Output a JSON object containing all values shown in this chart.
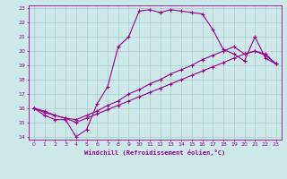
{
  "xlabel": "Windchill (Refroidissement éolien,°C)",
  "bg_color": "#cce8e8",
  "line_color": "#990099",
  "grid_color": "#aacccc",
  "xlim": [
    -0.5,
    23.5
  ],
  "ylim": [
    13.8,
    23.2
  ],
  "x_ticks": [
    0,
    1,
    2,
    3,
    4,
    5,
    6,
    7,
    8,
    9,
    10,
    11,
    12,
    13,
    14,
    15,
    16,
    17,
    18,
    19,
    20,
    21,
    22,
    23
  ],
  "y_ticks": [
    14,
    15,
    16,
    17,
    18,
    19,
    20,
    21,
    22,
    23
  ],
  "line1_x": [
    0,
    1,
    2,
    3,
    4,
    5,
    6,
    7,
    8,
    9,
    10,
    11,
    12,
    13,
    14,
    15,
    16,
    17,
    18,
    19,
    20,
    21,
    22,
    23
  ],
  "line1_y": [
    16.0,
    15.5,
    15.2,
    15.2,
    14.0,
    14.5,
    16.3,
    17.5,
    20.3,
    21.0,
    22.8,
    22.9,
    22.7,
    22.9,
    22.8,
    22.7,
    22.6,
    21.5,
    20.1,
    19.8,
    19.3,
    21.0,
    19.5,
    19.1
  ],
  "line2_x": [
    0,
    1,
    2,
    3,
    4,
    5,
    6,
    7,
    8,
    9,
    10,
    11,
    12,
    13,
    14,
    15,
    16,
    17,
    18,
    19,
    20,
    21,
    22,
    23
  ],
  "line2_y": [
    16.0,
    15.8,
    15.5,
    15.3,
    15.2,
    15.5,
    15.8,
    16.2,
    16.5,
    17.0,
    17.3,
    17.7,
    18.0,
    18.4,
    18.7,
    19.0,
    19.4,
    19.7,
    20.0,
    20.3,
    19.8,
    20.0,
    19.7,
    19.1
  ],
  "line3_x": [
    0,
    1,
    2,
    3,
    4,
    5,
    6,
    7,
    8,
    9,
    10,
    11,
    12,
    13,
    14,
    15,
    16,
    17,
    18,
    19,
    20,
    21,
    22,
    23
  ],
  "line3_y": [
    16.0,
    15.7,
    15.5,
    15.3,
    15.0,
    15.3,
    15.6,
    15.9,
    16.2,
    16.5,
    16.8,
    17.1,
    17.4,
    17.7,
    18.0,
    18.3,
    18.6,
    18.9,
    19.2,
    19.5,
    19.8,
    20.0,
    19.8,
    19.1
  ]
}
